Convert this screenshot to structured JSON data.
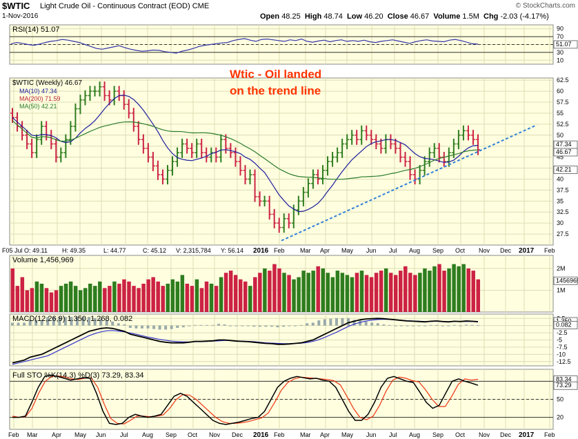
{
  "header": {
    "symbol": "$WTIC",
    "name": "Light Crude Oil - Continuous Contract (EOD)",
    "exchange": "CME",
    "watermark": "© StockCharts.com",
    "date": "1-Nov-2016",
    "open_label": "Open",
    "open": "48.25",
    "high_label": "High",
    "high": "48.74",
    "low_label": "Low",
    "low": "46.20",
    "close_label": "Close",
    "close": "46.67",
    "volume_label": "Volume",
    "volume": "1.5M",
    "chg_label": "Chg",
    "chg": "-2.03 (-4.17%)"
  },
  "annotation": {
    "line1": "Wtic -  Oil landed",
    "line2": "on the trend line",
    "color": "#ff3300"
  },
  "colors": {
    "panel_bg": "#ffffe0",
    "grid": "#dcdcb4",
    "up": "#2e7d1f",
    "down": "#cc2244",
    "ma10": "#1c1c9c",
    "ma200": "#bb2233",
    "ma50": "#2a7a2a",
    "trend": "#2e7fd8",
    "rsi": "#3333aa",
    "macd": "#000000",
    "macd_signal": "#3333cc",
    "stoK": "#000000",
    "stoD": "#ee3311"
  },
  "chart_data": {
    "type": "candlestick",
    "x_ticks": [
      "Feb",
      "Mar",
      "Apr",
      "May",
      "Jun",
      "Jul",
      "Aug",
      "Sep",
      "Oct",
      "Nov",
      "Dec",
      "2016",
      "Feb",
      "Mar",
      "Apr",
      "May",
      "Jun",
      "Jul",
      "Aug",
      "Sep",
      "Oct",
      "Nov",
      "Dec",
      "2017",
      "Feb"
    ],
    "rsi": {
      "label": "RSI(14) 51.07",
      "last": 51.07,
      "yticks": [
        90,
        70,
        50,
        30,
        10
      ],
      "levels": [
        70,
        30
      ],
      "values": [
        52,
        55,
        53,
        50,
        48,
        51,
        55,
        58,
        60,
        63,
        61,
        58,
        55,
        50,
        45,
        40,
        38,
        41,
        44,
        47,
        42,
        38,
        35,
        33,
        34,
        36,
        35,
        32,
        30,
        28,
        33,
        36,
        40,
        45,
        48,
        50,
        52,
        54,
        55,
        60,
        63,
        65,
        61,
        58,
        63,
        64,
        62,
        60,
        58,
        62,
        60,
        64,
        58,
        56,
        59,
        61,
        57,
        60,
        62,
        58,
        60,
        58,
        61,
        57,
        55,
        58,
        60,
        62,
        59,
        56,
        53,
        57,
        60,
        62,
        59,
        58,
        57,
        61,
        63,
        60,
        56,
        52,
        51
      ]
    },
    "price": {
      "legend": {
        "symbol": "$WTIC (Weekly) 46.67",
        "ma10": "MA(10) 47.34",
        "ma200": "MA(200) 71.59",
        "ma50": "MA(50) 42.21"
      },
      "yticks": [
        62.5,
        60,
        57.5,
        55,
        52.5,
        50,
        47.5,
        45,
        42.5,
        40,
        37.5,
        35,
        32.5,
        30,
        27.5
      ],
      "ylim": [
        25,
        63
      ],
      "close": [
        54,
        52,
        50,
        48,
        46,
        49,
        52,
        50,
        48,
        45,
        46,
        49,
        52,
        56,
        58,
        59,
        60,
        60,
        61,
        59,
        58,
        60,
        59,
        57,
        55,
        52,
        49,
        47,
        45,
        43,
        41,
        40,
        42,
        44,
        46,
        48,
        47,
        46,
        48,
        46,
        45,
        46,
        45,
        49,
        47,
        46,
        44,
        42,
        40,
        41,
        36,
        35,
        35,
        32,
        30,
        29,
        31,
        30,
        33,
        35,
        37,
        39,
        41,
        40,
        42,
        44,
        45,
        46,
        48,
        49,
        50,
        49,
        51,
        50,
        49,
        48,
        47,
        49,
        48,
        47,
        45,
        44,
        41,
        40,
        42,
        44,
        46,
        47,
        45,
        44,
        46,
        48,
        50,
        51,
        50,
        49,
        46.67
      ],
      "trendline": {
        "from": [
          "2016 Feb",
          26.0
        ],
        "to": [
          "2017 Feb",
          52.3
        ]
      },
      "last_labels": [
        "47.34",
        "46.67",
        "42.21"
      ]
    },
    "info_line": {
      "date": "F05 Jul O: 49.11",
      "high": "H: 49.35",
      "low": "L: 44.77",
      "close": "C: 45.12",
      "volume": "V: 2,315,784",
      "y": "Y: 56.14"
    },
    "volume": {
      "label": "Volume 1,456,969",
      "yticks": [
        "2M",
        "1M"
      ],
      "last_label": "1456969",
      "values": [
        2.0,
        1.2,
        1.6,
        1.0,
        1.1,
        1.4,
        1.3,
        1.1,
        0.9,
        1.0,
        1.2,
        1.3,
        1.4,
        1.2,
        1.0,
        1.1,
        1.3,
        1.2,
        1.4,
        1.1,
        1.2,
        1.4,
        1.3,
        1.5,
        1.4,
        1.2,
        1.1,
        1.3,
        1.5,
        1.6,
        1.4,
        1.2,
        1.3,
        1.5,
        1.4,
        1.7,
        1.3,
        1.2,
        1.5,
        1.1,
        1.4,
        1.3,
        1.2,
        1.6,
        1.8,
        1.9,
        1.7,
        1.5,
        1.4,
        1.2,
        1.6,
        1.8,
        2.0,
        1.9,
        2.2,
        2.0,
        1.8,
        1.7,
        1.5,
        1.6,
        1.9,
        1.8,
        1.9,
        2.1,
        2.0,
        1.8,
        1.6,
        1.9,
        1.8,
        1.7,
        1.6,
        1.8,
        1.9,
        1.7,
        1.6,
        1.8,
        1.9,
        2.0,
        1.8,
        1.7,
        1.9,
        2.1,
        1.8,
        1.7,
        1.8,
        2.0,
        1.9,
        2.1,
        2.2,
        1.9,
        2.0,
        2.2,
        2.1,
        2.2,
        2.0,
        1.9,
        1.5
      ]
    },
    "macd": {
      "label": "MACD(12,26,9) 1.350, 1.268, 0.082",
      "yticks": [
        2.5,
        0,
        -2.5,
        -5,
        -7.5,
        -10,
        -12.5
      ],
      "ylim": [
        -14,
        4
      ],
      "last_labels": [
        "1.350",
        "1.268",
        "0.082"
      ],
      "macd": [
        -13,
        -12.5,
        -12,
        -11,
        -10.5,
        -10,
        -9,
        -8,
        -7,
        -6,
        -5,
        -4,
        -3,
        -2,
        -1.5,
        -1,
        -0.8,
        -1,
        -1.5,
        -2,
        -3,
        -3.5,
        -4,
        -4.5,
        -5,
        -5.5,
        -5.8,
        -6,
        -6,
        -6,
        -5.8,
        -5.5,
        -5.5,
        -5.4,
        -5.3,
        -5,
        -5,
        -5.2,
        -5.4,
        -5.5,
        -5.6,
        -5.8,
        -6,
        -6.2,
        -6.3,
        -6.5,
        -6.5,
        -6.4,
        -6.2,
        -6,
        -5.5,
        -5,
        -4,
        -3,
        -2,
        -1,
        0,
        1,
        1.5,
        2,
        2.3,
        2.4,
        2.5,
        2.4,
        2.2,
        2,
        1.8,
        1.6,
        1.5,
        1.4,
        1.3,
        1.5,
        1.6,
        1.4,
        1.3,
        1.5,
        1.4,
        1.6,
        1.5,
        1.35
      ],
      "signal": [
        -13.5,
        -13,
        -12.5,
        -12,
        -11.5,
        -11,
        -10.5,
        -9.5,
        -8.5,
        -7.5,
        -6.5,
        -5.5,
        -4.5,
        -3.5,
        -2.8,
        -2.2,
        -1.8,
        -1.7,
        -1.9,
        -2.2,
        -2.6,
        -3,
        -3.5,
        -4,
        -4.4,
        -4.8,
        -5.1,
        -5.4,
        -5.6,
        -5.7,
        -5.7,
        -5.6,
        -5.6,
        -5.5,
        -5.4,
        -5.3,
        -5.2,
        -5.2,
        -5.3,
        -5.4,
        -5.5,
        -5.6,
        -5.8,
        -6,
        -6.1,
        -6.2,
        -6.3,
        -6.3,
        -6.2,
        -6.1,
        -5.9,
        -5.5,
        -4.9,
        -4.1,
        -3.2,
        -2.3,
        -1.3,
        -0.3,
        0.5,
        1.1,
        1.6,
        1.9,
        2.1,
        2.2,
        2.1,
        2,
        1.9,
        1.7,
        1.6,
        1.5,
        1.4,
        1.4,
        1.5,
        1.4,
        1.35,
        1.4,
        1.4,
        1.45,
        1.4,
        1.268
      ]
    },
    "sto": {
      "label": "Full STO %K(14,3) %D(3) 73.29, 83.34",
      "yticks": [
        80,
        50,
        20
      ],
      "levels": [
        80,
        50,
        20
      ],
      "last_labels": [
        "83.34",
        "73.29"
      ],
      "k": [
        20,
        20,
        22,
        45,
        70,
        88,
        90,
        88,
        85,
        82,
        84,
        86,
        85,
        60,
        30,
        10,
        8,
        10,
        20,
        25,
        22,
        20,
        22,
        25,
        40,
        55,
        60,
        55,
        45,
        35,
        25,
        15,
        10,
        8,
        10,
        12,
        15,
        18,
        20,
        30,
        50,
        70,
        80,
        85,
        88,
        86,
        84,
        85,
        82,
        80,
        70,
        50,
        30,
        15,
        15,
        25,
        45,
        70,
        85,
        88,
        84,
        80,
        78,
        62,
        45,
        35,
        40,
        60,
        80,
        84,
        80,
        77,
        73.29
      ],
      "d": [
        22,
        20,
        21,
        35,
        60,
        80,
        88,
        89,
        87,
        84,
        83,
        85,
        86,
        70,
        42,
        18,
        10,
        9,
        15,
        22,
        22,
        21,
        22,
        24,
        35,
        50,
        58,
        57,
        50,
        40,
        30,
        20,
        13,
        10,
        10,
        11,
        13,
        16,
        19,
        27,
        45,
        65,
        78,
        84,
        87,
        86,
        85,
        84,
        83,
        81,
        74,
        55,
        35,
        20,
        16,
        22,
        40,
        64,
        82,
        87,
        85,
        81,
        79,
        66,
        50,
        38,
        38,
        55,
        75,
        84,
        82,
        83.34
      ]
    }
  }
}
